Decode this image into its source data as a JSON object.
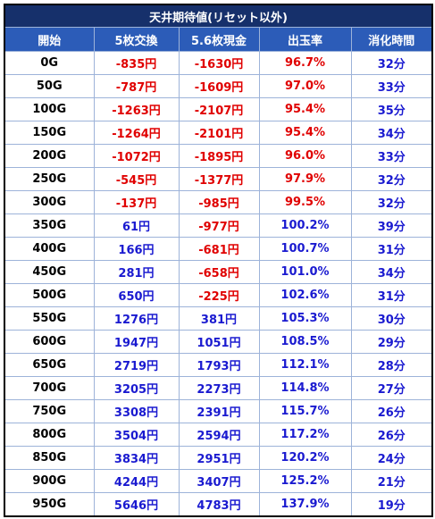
{
  "table": {
    "title": "天井期待値(リセット以外)",
    "header": [
      "開始",
      "5枚交換",
      "5.6枚現金",
      "出玉率",
      "消化時間"
    ],
    "rows": [
      [
        "0G",
        "-835円",
        "-1630円",
        "96.7%",
        "32分"
      ],
      [
        "50G",
        "-787円",
        "-1609円",
        "97.0%",
        "33分"
      ],
      [
        "100G",
        "-1263円",
        "-2107円",
        "95.4%",
        "35分"
      ],
      [
        "150G",
        "-1264円",
        "-2101円",
        "95.4%",
        "34分"
      ],
      [
        "200G",
        "-1072円",
        "-1895円",
        "96.0%",
        "33分"
      ],
      [
        "250G",
        "-545円",
        "-1377円",
        "97.9%",
        "32分"
      ],
      [
        "300G",
        "-137円",
        "-985円",
        "99.5%",
        "32分"
      ],
      [
        "350G",
        "61円",
        "-977円",
        "100.2%",
        "39分"
      ],
      [
        "400G",
        "166円",
        "-681円",
        "100.7%",
        "31分"
      ],
      [
        "450G",
        "281円",
        "-658円",
        "101.0%",
        "34分"
      ],
      [
        "500G",
        "650円",
        "-225円",
        "102.6%",
        "31分"
      ],
      [
        "550G",
        "1276円",
        "381円",
        "105.3%",
        "30分"
      ],
      [
        "600G",
        "1947円",
        "1051円",
        "108.5%",
        "29分"
      ],
      [
        "650G",
        "2719円",
        "1793円",
        "112.1%",
        "28分"
      ],
      [
        "700G",
        "3205円",
        "2273円",
        "114.8%",
        "27分"
      ],
      [
        "750G",
        "3308円",
        "2391円",
        "115.7%",
        "26分"
      ],
      [
        "800G",
        "3504円",
        "2594円",
        "117.2%",
        "26分"
      ],
      [
        "850G",
        "3834円",
        "2951円",
        "120.2%",
        "24分"
      ],
      [
        "900G",
        "4244円",
        "3407円",
        "125.2%",
        "21分"
      ],
      [
        "950G",
        "5646円",
        "4783円",
        "137.9%",
        "19分"
      ]
    ]
  }
}
